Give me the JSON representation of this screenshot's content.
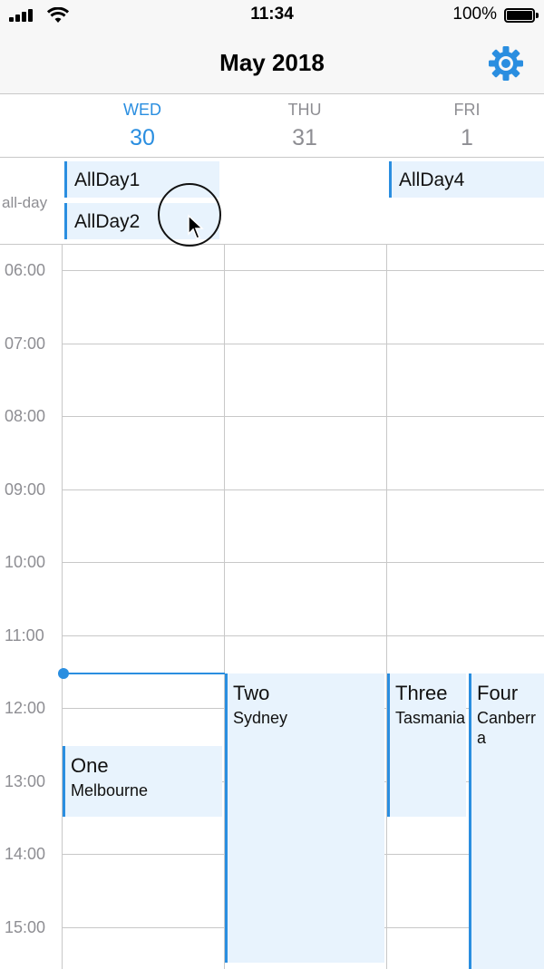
{
  "status_bar": {
    "time": "11:34",
    "battery_text": "100%"
  },
  "nav": {
    "title": "May 2018",
    "settings_icon": "gear-icon"
  },
  "days": [
    {
      "name": "WED",
      "number": "30",
      "today": true
    },
    {
      "name": "THU",
      "number": "31",
      "today": false
    },
    {
      "name": "FRI",
      "number": "1",
      "today": false
    }
  ],
  "all_day": {
    "label": "all-day",
    "events": [
      {
        "title": "AllDay1",
        "day": "WED"
      },
      {
        "title": "AllDay2",
        "day": "WED"
      },
      {
        "title": "AllDay4",
        "day": "FRI"
      }
    ]
  },
  "hours": [
    "06:00",
    "07:00",
    "08:00",
    "09:00",
    "10:00",
    "11:00",
    "12:00",
    "13:00",
    "14:00",
    "15:00"
  ],
  "events": [
    {
      "title": "One",
      "location": "Melbourne",
      "day": "WED",
      "start": "12:30",
      "end": "13:30"
    },
    {
      "title": "Two",
      "location": "Sydney",
      "day": "THU",
      "start": "11:30",
      "end": "15:30"
    },
    {
      "title": "Three",
      "location": "Tasmania",
      "day": "FRI",
      "start": "11:30",
      "end": "13:30"
    },
    {
      "title": "Four",
      "location": "Canberra",
      "day": "FRI",
      "start": "11:30",
      "end": "15:30"
    }
  ],
  "current_time_indicator": "11:30",
  "colors": {
    "accent": "#2a8ee0",
    "event_bg": "#e8f3fd",
    "grid": "#c8c8c8",
    "muted_text": "#8e8e93"
  }
}
